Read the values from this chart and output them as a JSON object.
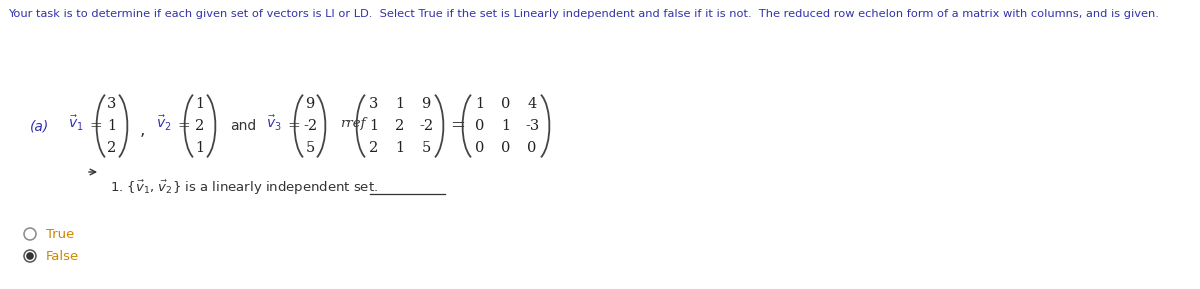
{
  "title": "Your task is to determine if each given set of vectors is LI or LD.  Select True if the set is Linearly independent and false if it is not.  The reduced row echelon form of a matrix with columns, and is given.",
  "v1": [
    "3",
    "1",
    "2"
  ],
  "v2": [
    "1",
    "2",
    "1"
  ],
  "v3": [
    "9",
    "-2",
    "5"
  ],
  "matrix_left": [
    [
      "3",
      "1",
      "9"
    ],
    [
      "1",
      "2",
      "-2"
    ],
    [
      "2",
      "1",
      "5"
    ]
  ],
  "matrix_right": [
    [
      "1",
      "0",
      "4"
    ],
    [
      "0",
      "1",
      "-3"
    ],
    [
      "0",
      "0",
      "0"
    ]
  ],
  "true_label": "True",
  "false_label": "False",
  "false_selected": true,
  "bg_color": "#ffffff",
  "title_color": "#3333aa",
  "label_color": "#3333aa",
  "radio_label_color": "#cc8800",
  "paren_color": "#555555",
  "text_color": "#333333"
}
